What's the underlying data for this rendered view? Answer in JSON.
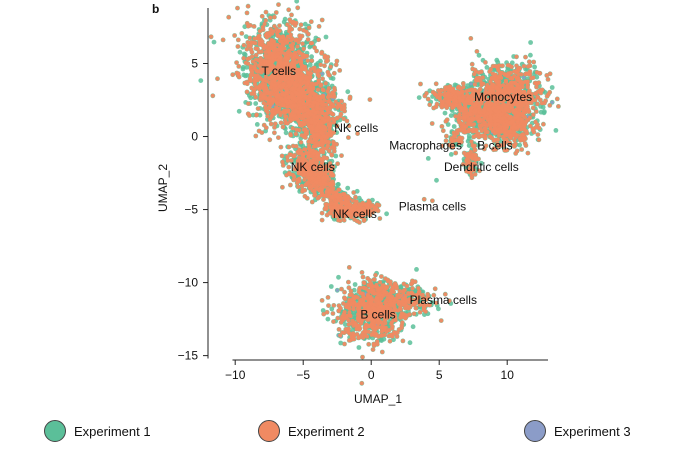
{
  "panel_label": "b",
  "chart_data": {
    "type": "scatter",
    "title": "",
    "xlabel": "UMAP_1",
    "ylabel": "UMAP_2",
    "xlim": [
      -12,
      13
    ],
    "ylim": [
      -15.3,
      8.8
    ],
    "xticks": [
      -10,
      -5,
      0,
      5,
      10
    ],
    "yticks": [
      -15,
      -10,
      -5,
      0,
      5
    ],
    "xtick_labels": [
      "−10",
      "−5",
      "0",
      "5",
      "10"
    ],
    "ytick_labels": [
      "−15",
      "−10",
      "−5",
      "0",
      "5"
    ],
    "grid": false,
    "legend_position": "bottom",
    "series": [
      {
        "name": "Experiment 1",
        "color": "#5BBF99"
      },
      {
        "name": "Experiment 2",
        "color": "#F08A62"
      },
      {
        "name": "Experiment 3",
        "color": "#8B9CC8"
      }
    ],
    "clusters": [
      {
        "label": "T cells",
        "x": -6.8,
        "y": 4.5
      },
      {
        "label": "NK cells",
        "x": -1.1,
        "y": 0.6
      },
      {
        "label": "NK cells",
        "x": -4.3,
        "y": -2.1
      },
      {
        "label": "NK cells",
        "x": -1.2,
        "y": -5.3
      },
      {
        "label": "Monocytes",
        "x": 9.7,
        "y": 2.7
      },
      {
        "label": "Macrophages",
        "x": 4.0,
        "y": -0.6
      },
      {
        "label": "B cells",
        "x": 9.1,
        "y": -0.6
      },
      {
        "label": "Dendritic cells",
        "x": 8.1,
        "y": -2.1
      },
      {
        "label": "Plasma cells",
        "x": 4.5,
        "y": -4.8
      },
      {
        "label": "Plasma cells",
        "x": 5.3,
        "y": -11.2
      },
      {
        "label": "B cells",
        "x": 0.5,
        "y": -12.2
      }
    ]
  }
}
